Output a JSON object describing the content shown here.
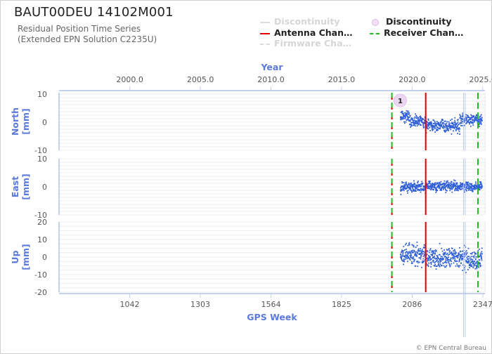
{
  "header": {
    "station": "BAUT00DEU 14102M001",
    "subtitle_line1": "Residual Position Time Series",
    "subtitle_line2": "(Extended EPN Solution C2235U)"
  },
  "legend": {
    "items": [
      {
        "label": "Discontinuity",
        "style": "solid",
        "color": "#d8d8d8",
        "faded": true
      },
      {
        "label": "Discontinuity",
        "style": "circle",
        "color": "#e8c8ee",
        "faded": false
      },
      {
        "label": "Antenna Chan…",
        "style": "solid",
        "color": "#e00000",
        "faded": false
      },
      {
        "label": "Receiver Chan…",
        "style": "dashed",
        "color": "#22bb22",
        "faded": false
      },
      {
        "label": "Firmware Cha…",
        "style": "dashed",
        "color": "#d8d8d8",
        "faded": true
      }
    ]
  },
  "footer": {
    "copyright": "© EPN Central Bureau"
  },
  "chart_data": {
    "type": "scatter",
    "top_axis": {
      "label": "Year",
      "ticks": [
        "2000.0",
        "2005.0",
        "2010.0",
        "2015.0",
        "2020.0",
        "2025.0"
      ]
    },
    "x_axis": {
      "label": "GPS Week",
      "ticks": [
        "1042",
        "1303",
        "1564",
        "1825",
        "2086",
        "2347"
      ],
      "range": [
        781,
        2355
      ]
    },
    "week_year": {
      "week": [
        1042,
        2347
      ],
      "year": [
        1999.99,
        2025.01
      ]
    },
    "events": {
      "antenna_change_week": 2136,
      "receiver_change_weeks": [
        2011,
        2329
      ],
      "discontinuity_marker": {
        "week": 2042,
        "label": "1"
      },
      "gaps_weeks": [
        2276,
        2282
      ]
    },
    "series": [
      {
        "name": "North",
        "ylabel": "North\n[mm]",
        "yticks": [
          "10",
          "0",
          "-10"
        ],
        "ylim": [
          -10,
          10
        ],
        "segments": [
          {
            "from": 2043,
            "to": 2075,
            "mean": 2.2,
            "spread": 2.0
          },
          {
            "from": 2075,
            "to": 2136,
            "mean": 0.3,
            "spread": 2.0
          },
          {
            "from": 2136,
            "to": 2200,
            "mean": -1.0,
            "spread": 2.0
          },
          {
            "from": 2200,
            "to": 2262,
            "mean": -1.5,
            "spread": 2.0
          },
          {
            "from": 2262,
            "to": 2345,
            "mean": 0.8,
            "spread": 1.8
          }
        ]
      },
      {
        "name": "East",
        "ylabel": "East\n[mm]",
        "yticks": [
          "10",
          "0",
          "-10"
        ],
        "ylim": [
          -10,
          10
        ],
        "segments": [
          {
            "from": 2043,
            "to": 2136,
            "mean": 0.0,
            "spread": 1.6
          },
          {
            "from": 2136,
            "to": 2262,
            "mean": 0.3,
            "spread": 1.6
          },
          {
            "from": 2262,
            "to": 2345,
            "mean": 0.0,
            "spread": 1.5
          }
        ]
      },
      {
        "name": "Up",
        "ylabel": "Up\n[mm]",
        "yticks": [
          "20",
          "10",
          "0",
          "-10",
          "-20"
        ],
        "ylim": [
          -20,
          20
        ],
        "segments": [
          {
            "from": 2043,
            "to": 2136,
            "mean": 1.0,
            "spread": 5.0
          },
          {
            "from": 2136,
            "to": 2262,
            "mean": 0.0,
            "spread": 5.0
          },
          {
            "from": 2262,
            "to": 2345,
            "mean": -1.0,
            "spread": 5.0
          }
        ]
      }
    ],
    "colors": {
      "points": "#2f5fd6",
      "axis_label": "#5b7ad9",
      "antenna": "#e00000",
      "receiver": "#22bb22",
      "marker": "#ead6f1",
      "gaps": "#b9c9ee"
    }
  }
}
